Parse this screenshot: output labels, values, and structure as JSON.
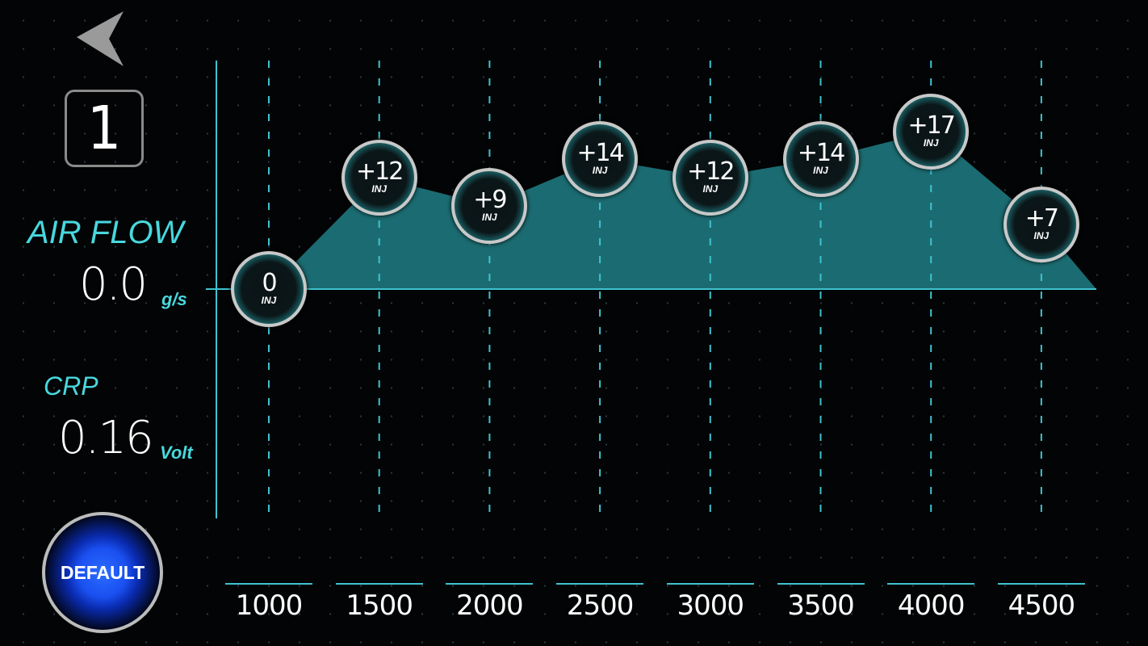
{
  "nav": {
    "back_icon": "back-arrow-icon"
  },
  "page_number": "1",
  "air_flow": {
    "label": "AIR FLOW",
    "value": "0.0",
    "unit": "g/s"
  },
  "crp": {
    "label": "CRP",
    "value": "0.16",
    "unit": "Volt"
  },
  "default_button": "DEFAULT",
  "colors": {
    "accent": "#48d8de",
    "fill": "#1b6c72",
    "button": "#2b6cff"
  },
  "chart_data": {
    "type": "area",
    "x": [
      "1000",
      "1500",
      "2000",
      "2500",
      "3000",
      "3500",
      "4000",
      "4500"
    ],
    "values": [
      0,
      12,
      9,
      14,
      12,
      14,
      17,
      7
    ],
    "labels": [
      "0",
      "+12",
      "+9",
      "+14",
      "+12",
      "+14",
      "+17",
      "+7"
    ],
    "unit": "INJ"
  }
}
